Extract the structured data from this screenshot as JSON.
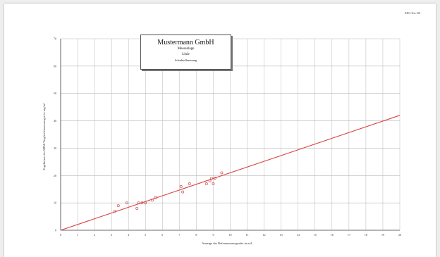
{
  "header": {
    "code": "KEG-Uto-/06"
  },
  "title_box": {
    "title": "Mustermann GmbH",
    "line1": "Messanlage",
    "line2": "Linie",
    "line3": "Schadstoffmessung"
  },
  "colors": {
    "line": "#d94040",
    "points": "#c85050",
    "grid": "#b8b8b8",
    "axis": "#444444"
  },
  "chart_data": {
    "type": "scatter",
    "title": "Mustermann GmbH",
    "xlabel": "Anzeige der Referenzmessgeräte in mA",
    "ylabel": "Ergebnisse der SRM-Vergleichsmessungen in mg/m³",
    "xlim": [
      0,
      20
    ],
    "ylim": [
      0,
      70
    ],
    "xticks": [
      "0",
      "1",
      "2",
      "3",
      "4",
      "5",
      "6",
      "7",
      "8",
      "9",
      "10",
      "11",
      "12",
      "13",
      "14",
      "15",
      "16",
      "17",
      "18",
      "19",
      "20"
    ],
    "yticks": [
      "0",
      "10",
      "20",
      "30",
      "40",
      "50",
      "60",
      "70"
    ],
    "grid": true,
    "series": [
      {
        "kind": "points",
        "x": [
          3.2,
          3.4,
          3.9,
          4.5,
          4.6,
          4.8,
          5.0,
          5.4,
          5.6,
          7.1,
          7.2,
          7.6,
          8.6,
          8.8,
          8.9,
          9.0,
          9.1,
          9.5
        ],
        "y": [
          7,
          9,
          10,
          8,
          10,
          10,
          10,
          11,
          12,
          16,
          14,
          17,
          17,
          18,
          19,
          17,
          19,
          21
        ]
      },
      {
        "kind": "line",
        "x": [
          0,
          20
        ],
        "y": [
          0,
          42
        ]
      }
    ]
  }
}
